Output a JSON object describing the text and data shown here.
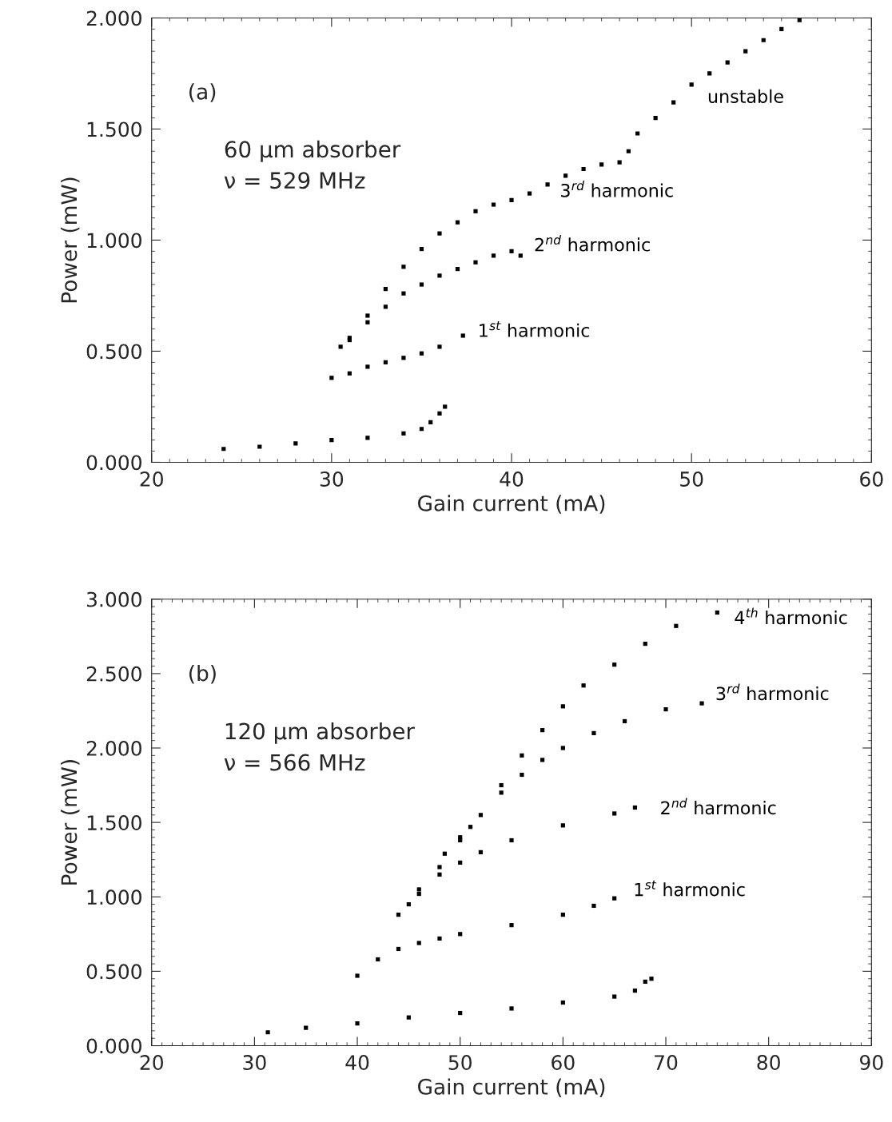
{
  "chart_data": [
    {
      "type": "scatter",
      "xlabel": "Gain current (mA)",
      "ylabel": "Power (mW)",
      "xlim": [
        20,
        60
      ],
      "ylim": [
        0,
        2.0
      ],
      "xticks": [
        20,
        30,
        40,
        50,
        60
      ],
      "yticks": [
        {
          "value": 0,
          "label": "0.000"
        },
        {
          "value": 0.5,
          "label": "0.500"
        },
        {
          "value": 1.0,
          "label": "1.000"
        },
        {
          "value": 1.5,
          "label": "1.500"
        },
        {
          "value": 2.0,
          "label": "2.000"
        }
      ],
      "marker": "square",
      "grid": false,
      "legend": false,
      "series": [
        {
          "color": "#000000",
          "x": [
            24,
            26,
            28,
            30,
            32,
            34,
            35,
            35.5,
            36,
            36.3
          ],
          "values": [
            0.06,
            0.07,
            0.085,
            0.1,
            0.11,
            0.13,
            0.15,
            0.18,
            0.22,
            0.25
          ]
        },
        {
          "name": "1$^{st}$ harmonic",
          "color": "#000000",
          "x": [
            30,
            31,
            32,
            33,
            34,
            35,
            36,
            37.3
          ],
          "values": [
            0.38,
            0.4,
            0.43,
            0.45,
            0.47,
            0.49,
            0.52,
            0.57
          ]
        },
        {
          "name": "2$^{nd}$ harmonic",
          "color": "#000000",
          "x": [
            31,
            32,
            33,
            34,
            35,
            36,
            37,
            38,
            39,
            40,
            40.5
          ],
          "values": [
            0.55,
            0.63,
            0.7,
            0.76,
            0.8,
            0.84,
            0.87,
            0.9,
            0.93,
            0.95,
            0.93
          ]
        },
        {
          "name": "3$^{rd}$ harmonic",
          "color": "#000000",
          "x": [
            30.5,
            31,
            32,
            33,
            34,
            35,
            36,
            37,
            38,
            39,
            40,
            41,
            42,
            43,
            44,
            45,
            46
          ],
          "values": [
            0.52,
            0.56,
            0.66,
            0.78,
            0.88,
            0.96,
            1.03,
            1.08,
            1.13,
            1.16,
            1.18,
            1.21,
            1.25,
            1.29,
            1.32,
            1.34,
            1.35
          ]
        },
        {
          "name": "unstable",
          "color": "#000000",
          "x": [
            46.5,
            47,
            48,
            49,
            50,
            51,
            52,
            53,
            54,
            55,
            56
          ],
          "values": [
            1.4,
            1.48,
            1.55,
            1.62,
            1.7,
            1.75,
            1.8,
            1.85,
            1.9,
            1.95,
            1.99
          ]
        }
      ],
      "annotations": [
        "(a)",
        "60 μm absorber",
        "ν = 529 MHz"
      ]
    },
    {
      "type": "scatter",
      "xlabel": "Gain current (mA)",
      "ylabel": "Power (mW)",
      "xlim": [
        20,
        90
      ],
      "ylim": [
        0,
        3.0
      ],
      "xticks": [
        20,
        30,
        40,
        50,
        60,
        70,
        80,
        90
      ],
      "yticks": [
        {
          "value": 0,
          "label": "0.000"
        },
        {
          "value": 0.5,
          "label": "0.500"
        },
        {
          "value": 1.0,
          "label": "1.000"
        },
        {
          "value": 1.5,
          "label": "1.500"
        },
        {
          "value": 2.0,
          "label": "2.000"
        },
        {
          "value": 2.5,
          "label": "2.500"
        },
        {
          "value": 3.0,
          "label": "3.000"
        }
      ],
      "marker": "square",
      "grid": false,
      "legend": false,
      "series": [
        {
          "color": "#000000",
          "x": [
            31.3,
            35,
            40,
            45,
            50,
            55,
            60,
            65,
            67,
            68,
            68.6
          ],
          "values": [
            0.09,
            0.12,
            0.15,
            0.19,
            0.22,
            0.25,
            0.29,
            0.33,
            0.37,
            0.43,
            0.45
          ]
        },
        {
          "name": "1$^{st}$ harmonic",
          "color": "#000000",
          "x": [
            40,
            42,
            44,
            46,
            48,
            50,
            55,
            60,
            63,
            65
          ],
          "values": [
            0.47,
            0.58,
            0.65,
            0.69,
            0.72,
            0.75,
            0.81,
            0.88,
            0.94,
            0.99
          ]
        },
        {
          "name": "2$^{nd}$ harmonic",
          "color": "#000000",
          "x": [
            45,
            46,
            48,
            50,
            52,
            55,
            60,
            65,
            67
          ],
          "values": [
            0.95,
            1.05,
            1.15,
            1.23,
            1.3,
            1.38,
            1.48,
            1.56,
            1.6
          ]
        },
        {
          "name": "3$^{rd}$ harmonic",
          "color": "#000000",
          "x": [
            48.5,
            50,
            52,
            54,
            56,
            58,
            60,
            63,
            66,
            70,
            73.5
          ],
          "values": [
            1.29,
            1.4,
            1.55,
            1.7,
            1.82,
            1.92,
            2.0,
            2.1,
            2.18,
            2.26,
            2.3
          ]
        },
        {
          "name": "4$^{th}$ harmonic",
          "color": "#000000",
          "x": [
            44,
            46,
            48,
            50,
            51,
            54,
            56,
            58,
            60,
            62,
            65,
            68,
            71,
            75
          ],
          "values": [
            0.88,
            1.02,
            1.2,
            1.38,
            1.47,
            1.75,
            1.95,
            2.12,
            2.28,
            2.42,
            2.56,
            2.7,
            2.82,
            2.91
          ]
        }
      ],
      "annotations": [
        "(b)",
        "120 μm absorber",
        "ν = 566 MHz"
      ]
    }
  ]
}
